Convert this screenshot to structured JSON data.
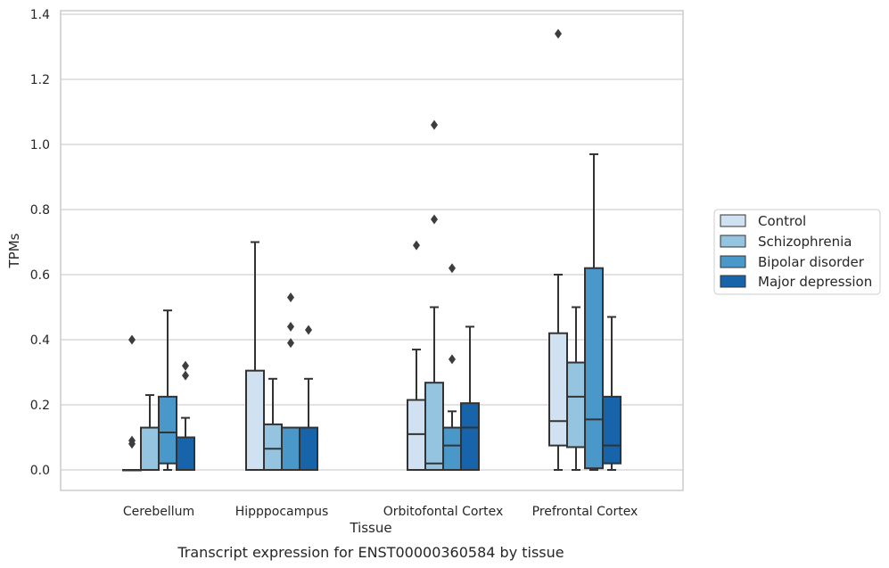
{
  "caption": "Transcript expression for ENST00000360584 by tissue",
  "chart_data": {
    "type": "box",
    "xlabel": "Tissue",
    "ylabel": "TPMs",
    "ylim": [
      -0.065,
      1.41
    ],
    "yticks": [
      0.0,
      0.2,
      0.4,
      0.6,
      0.8,
      1.0,
      1.2,
      1.4
    ],
    "ytick_labels": [
      "0.0",
      "0.2",
      "0.4",
      "0.6",
      "0.8",
      "1.0",
      "1.2",
      "1.4"
    ],
    "grid": "horizontal",
    "legend_position": "right",
    "categories": [
      "Cerebellum",
      "Hipppocampus",
      "Orbitofontal Cortex",
      "Prefrontal Cortex"
    ],
    "series": [
      {
        "name": "Control",
        "color": "#d0e1f2",
        "boxes": [
          {
            "q1": 0.0,
            "median": 0.0,
            "q3": 0.0,
            "whisker_low": 0.0,
            "whisker_high": 0.0,
            "outliers": [
              0.4,
              0.08,
              0.09
            ]
          },
          {
            "q1": 0.0,
            "median": 0.0,
            "q3": 0.305,
            "whisker_low": 0.0,
            "whisker_high": 0.7,
            "outliers": []
          },
          {
            "q1": 0.0,
            "median": 0.11,
            "q3": 0.215,
            "whisker_low": 0.0,
            "whisker_high": 0.37,
            "outliers": [
              0.69
            ]
          },
          {
            "q1": 0.075,
            "median": 0.15,
            "q3": 0.42,
            "whisker_low": 0.0,
            "whisker_high": 0.6,
            "outliers": [
              1.34
            ]
          }
        ]
      },
      {
        "name": "Schizophrenia",
        "color": "#94c4df",
        "boxes": [
          {
            "q1": 0.0,
            "median": 0.0,
            "q3": 0.13,
            "whisker_low": 0.0,
            "whisker_high": 0.23,
            "outliers": []
          },
          {
            "q1": 0.0,
            "median": 0.065,
            "q3": 0.14,
            "whisker_low": 0.0,
            "whisker_high": 0.28,
            "outliers": []
          },
          {
            "q1": 0.0,
            "median": 0.02,
            "q3": 0.268,
            "whisker_low": 0.0,
            "whisker_high": 0.5,
            "outliers": [
              1.06,
              0.77
            ]
          },
          {
            "q1": 0.07,
            "median": 0.225,
            "q3": 0.33,
            "whisker_low": 0.0,
            "whisker_high": 0.5,
            "outliers": []
          }
        ]
      },
      {
        "name": "Bipolar disorder",
        "color": "#4a98c9",
        "boxes": [
          {
            "q1": 0.02,
            "median": 0.115,
            "q3": 0.225,
            "whisker_low": 0.0,
            "whisker_high": 0.49,
            "outliers": []
          },
          {
            "q1": 0.0,
            "median": 0.0,
            "q3": 0.13,
            "whisker_low": 0.0,
            "whisker_high": 0.13,
            "outliers": [
              0.53,
              0.44,
              0.39
            ]
          },
          {
            "q1": 0.0,
            "median": 0.075,
            "q3": 0.13,
            "whisker_low": 0.0,
            "whisker_high": 0.18,
            "outliers": [
              0.62,
              0.34
            ]
          },
          {
            "q1": 0.005,
            "median": 0.155,
            "q3": 0.62,
            "whisker_low": 0.0,
            "whisker_high": 0.97,
            "outliers": []
          }
        ]
      },
      {
        "name": "Major depression",
        "color": "#1764ab",
        "boxes": [
          {
            "q1": 0.0,
            "median": 0.0,
            "q3": 0.1,
            "whisker_low": 0.0,
            "whisker_high": 0.16,
            "outliers": [
              0.32,
              0.29
            ]
          },
          {
            "q1": 0.0,
            "median": 0.0,
            "q3": 0.13,
            "whisker_low": 0.0,
            "whisker_high": 0.28,
            "outliers": [
              0.43
            ]
          },
          {
            "q1": 0.0,
            "median": 0.13,
            "q3": 0.205,
            "whisker_low": 0.0,
            "whisker_high": 0.44,
            "outliers": []
          },
          {
            "q1": 0.02,
            "median": 0.075,
            "q3": 0.225,
            "whisker_low": 0.0,
            "whisker_high": 0.47,
            "outliers": []
          }
        ]
      }
    ]
  }
}
